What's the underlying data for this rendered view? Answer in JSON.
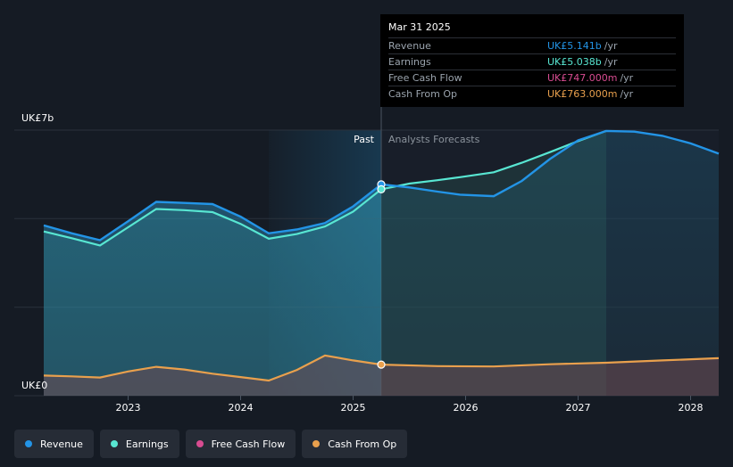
{
  "chart_data": {
    "type": "area",
    "y_top_label": "UK£7b",
    "y_bottom_label": "UK£0",
    "ylim": [
      0,
      7
    ],
    "x_ticks": [
      "2023",
      "2024",
      "2025",
      "2026",
      "2027",
      "2028"
    ],
    "past_label": "Past",
    "forecast_label": "Analysts Forecasts",
    "highlight_date": "Mar 31 2025",
    "series": [
      {
        "name": "Revenue",
        "color": "#2394e6",
        "points": [
          [
            2022.25,
            4.49
          ],
          [
            2022.5,
            4.28
          ],
          [
            2022.75,
            4.1
          ],
          [
            2023.0,
            4.6
          ],
          [
            2023.25,
            5.11
          ],
          [
            2023.5,
            5.08
          ],
          [
            2023.75,
            5.05
          ],
          [
            2024.0,
            4.72
          ],
          [
            2024.25,
            4.28
          ],
          [
            2024.5,
            4.38
          ],
          [
            2024.75,
            4.55
          ],
          [
            2025.0,
            4.99
          ],
          [
            2025.25,
            5.57
          ],
          [
            2025.5,
            5.49
          ],
          [
            2025.75,
            5.38
          ],
          [
            2025.95,
            5.3
          ],
          [
            2026.25,
            5.26
          ],
          [
            2026.5,
            5.66
          ],
          [
            2026.75,
            6.24
          ],
          [
            2027.0,
            6.73
          ],
          [
            2027.25,
            6.98
          ],
          [
            2027.5,
            6.96
          ],
          [
            2027.75,
            6.85
          ],
          [
            2028.0,
            6.65
          ],
          [
            2028.25,
            6.38
          ]
        ]
      },
      {
        "name": "Earnings",
        "color": "#58e6d2",
        "points": [
          [
            2022.25,
            4.33
          ],
          [
            2022.5,
            4.15
          ],
          [
            2022.75,
            3.96
          ],
          [
            2023.0,
            4.44
          ],
          [
            2023.25,
            4.92
          ],
          [
            2023.5,
            4.89
          ],
          [
            2023.75,
            4.84
          ],
          [
            2024.0,
            4.53
          ],
          [
            2024.25,
            4.14
          ],
          [
            2024.5,
            4.26
          ],
          [
            2024.75,
            4.46
          ],
          [
            2025.0,
            4.85
          ],
          [
            2025.25,
            5.44
          ],
          [
            2025.5,
            5.59
          ],
          [
            2025.75,
            5.68
          ],
          [
            2025.95,
            5.76
          ],
          [
            2026.25,
            5.89
          ],
          [
            2026.5,
            6.14
          ],
          [
            2026.75,
            6.42
          ],
          [
            2027.0,
            6.71
          ],
          [
            2027.25,
            6.98
          ]
        ]
      },
      {
        "name": "Free Cash Flow",
        "color": "#d84c91",
        "points": []
      },
      {
        "name": "Cash From Op",
        "color": "#e9a04d",
        "points": [
          [
            2022.25,
            0.53
          ],
          [
            2022.5,
            0.51
          ],
          [
            2022.75,
            0.48
          ],
          [
            2023.0,
            0.64
          ],
          [
            2023.25,
            0.76
          ],
          [
            2023.5,
            0.69
          ],
          [
            2023.75,
            0.58
          ],
          [
            2024.0,
            0.49
          ],
          [
            2024.25,
            0.4
          ],
          [
            2024.5,
            0.68
          ],
          [
            2024.75,
            1.06
          ],
          [
            2025.0,
            0.93
          ],
          [
            2025.25,
            0.82
          ],
          [
            2025.75,
            0.78
          ],
          [
            2026.25,
            0.77
          ],
          [
            2026.75,
            0.83
          ],
          [
            2027.25,
            0.87
          ],
          [
            2027.75,
            0.93
          ],
          [
            2028.25,
            0.99
          ]
        ]
      }
    ]
  },
  "tooltip": {
    "date": "Mar 31 2025",
    "rows": [
      {
        "label": "Revenue",
        "value": "UK£5.141b",
        "unit": "/yr",
        "color": "#2394e6"
      },
      {
        "label": "Earnings",
        "value": "UK£5.038b",
        "unit": "/yr",
        "color": "#58e6d2"
      },
      {
        "label": "Free Cash Flow",
        "value": "UK£747.000m",
        "unit": "/yr",
        "color": "#d84c91"
      },
      {
        "label": "Cash From Op",
        "value": "UK£763.000m",
        "unit": "/yr",
        "color": "#e9a04d"
      }
    ]
  },
  "legend": [
    {
      "label": "Revenue",
      "color": "#2394e6"
    },
    {
      "label": "Earnings",
      "color": "#58e6d2"
    },
    {
      "label": "Free Cash Flow",
      "color": "#d84c91"
    },
    {
      "label": "Cash From Op",
      "color": "#e9a04d"
    }
  ]
}
